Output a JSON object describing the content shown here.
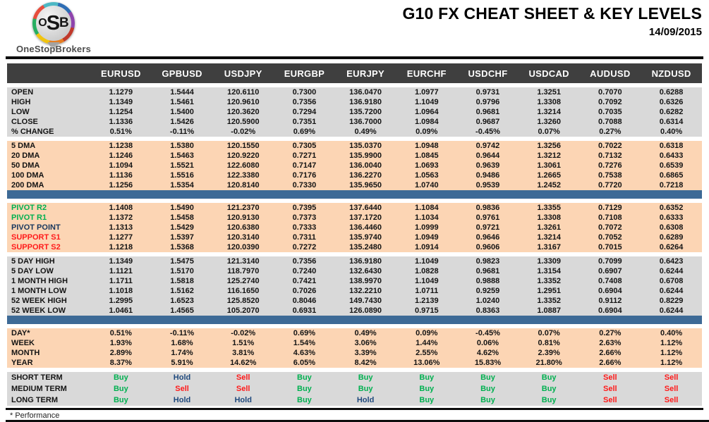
{
  "header": {
    "logo": {
      "letter_o": "O",
      "letter_s": "S",
      "letter_b": "B",
      "brand": "OneStopBrokers"
    },
    "title": "G10 FX CHEAT SHEET & KEY LEVELS",
    "date": "14/09/2015"
  },
  "footer": {
    "note": "* Performance"
  },
  "colors": {
    "header_bg": "#3f3f3f",
    "gray_section": "#d9d9d9",
    "peach_section": "#fcd5b4",
    "divider_blue": "#3d6a96",
    "buy_green": "#00b050",
    "sell_red": "#ff1a1a",
    "hold_navy": "#1f497d",
    "pivot_navy": "#17375e"
  },
  "table": {
    "columns": [
      "EURUSD",
      "GPBUSD",
      "USDJPY",
      "EURGBP",
      "EURJPY",
      "EURCHF",
      "USDCHF",
      "USDCAD",
      "AUDUSD",
      "NZDUSD"
    ],
    "sections": [
      {
        "name": "ohlc",
        "bg": "gray",
        "rows": [
          {
            "label": "OPEN",
            "values": [
              "1.1279",
              "1.5444",
              "120.6110",
              "0.7300",
              "136.0470",
              "1.0977",
              "0.9731",
              "1.3251",
              "0.7070",
              "0.6288"
            ]
          },
          {
            "label": "HIGH",
            "values": [
              "1.1349",
              "1.5461",
              "120.9610",
              "0.7356",
              "136.9180",
              "1.1049",
              "0.9796",
              "1.3308",
              "0.7092",
              "0.6326"
            ]
          },
          {
            "label": "LOW",
            "values": [
              "1.1254",
              "1.5400",
              "120.3620",
              "0.7294",
              "135.7200",
              "1.0964",
              "0.9681",
              "1.3214",
              "0.7035",
              "0.6282"
            ]
          },
          {
            "label": "CLOSE",
            "values": [
              "1.1336",
              "1.5426",
              "120.5900",
              "0.7351",
              "136.7000",
              "1.0984",
              "0.9687",
              "1.3260",
              "0.7088",
              "0.6314"
            ]
          },
          {
            "label": "% CHANGE",
            "values": [
              "0.51%",
              "-0.11%",
              "-0.02%",
              "0.69%",
              "0.49%",
              "0.09%",
              "-0.45%",
              "0.07%",
              "0.27%",
              "0.40%"
            ]
          }
        ]
      },
      {
        "name": "moving-averages",
        "bg": "peach",
        "divider_after": true,
        "rows": [
          {
            "label": "5 DMA",
            "values": [
              "1.1238",
              "1.5380",
              "120.1550",
              "0.7305",
              "135.0370",
              "1.0948",
              "0.9742",
              "1.3256",
              "0.7022",
              "0.6318"
            ]
          },
          {
            "label": "20 DMA",
            "values": [
              "1.1246",
              "1.5463",
              "120.9220",
              "0.7271",
              "135.9900",
              "1.0845",
              "0.9644",
              "1.3212",
              "0.7132",
              "0.6433"
            ]
          },
          {
            "label": "50 DMA",
            "values": [
              "1.1094",
              "1.5521",
              "122.6080",
              "0.7147",
              "136.0040",
              "1.0693",
              "0.9639",
              "1.3061",
              "0.7276",
              "0.6539"
            ]
          },
          {
            "label": "100 DMA",
            "values": [
              "1.1136",
              "1.5516",
              "122.3380",
              "0.7176",
              "136.2270",
              "1.0563",
              "0.9486",
              "1.2665",
              "0.7538",
              "0.6865"
            ]
          },
          {
            "label": "200 DMA",
            "values": [
              "1.1256",
              "1.5354",
              "120.8140",
              "0.7330",
              "135.9650",
              "1.0740",
              "0.9539",
              "1.2452",
              "0.7720",
              "0.7218"
            ]
          }
        ]
      },
      {
        "name": "pivots",
        "bg": "peach",
        "rows": [
          {
            "label": "PIVOT R2",
            "label_color": "green",
            "values": [
              "1.1408",
              "1.5490",
              "121.2370",
              "0.7395",
              "137.6440",
              "1.1084",
              "0.9836",
              "1.3355",
              "0.7129",
              "0.6352"
            ]
          },
          {
            "label": "PIVOT R1",
            "label_color": "green",
            "values": [
              "1.1372",
              "1.5458",
              "120.9130",
              "0.7373",
              "137.1720",
              "1.1034",
              "0.9761",
              "1.3308",
              "0.7108",
              "0.6333"
            ]
          },
          {
            "label": "PIVOT POINT",
            "label_color": "navy",
            "values": [
              "1.1313",
              "1.5429",
              "120.6380",
              "0.7333",
              "136.4460",
              "1.0999",
              "0.9721",
              "1.3261",
              "0.7072",
              "0.6308"
            ]
          },
          {
            "label": "SUPPORT S1",
            "label_color": "red",
            "values": [
              "1.1277",
              "1.5397",
              "120.3140",
              "0.7311",
              "135.9740",
              "1.0949",
              "0.9646",
              "1.3214",
              "0.7052",
              "0.6289"
            ]
          },
          {
            "label": "SUPPORT S2",
            "label_color": "red",
            "values": [
              "1.1218",
              "1.5368",
              "120.0390",
              "0.7272",
              "135.2480",
              "1.0914",
              "0.9606",
              "1.3167",
              "0.7015",
              "0.6264"
            ]
          }
        ]
      },
      {
        "name": "ranges",
        "bg": "gray",
        "divider_after": true,
        "rows": [
          {
            "label": "5 DAY HIGH",
            "values": [
              "1.1349",
              "1.5475",
              "121.3140",
              "0.7356",
              "136.9180",
              "1.1049",
              "0.9823",
              "1.3309",
              "0.7099",
              "0.6423"
            ]
          },
          {
            "label": "5 DAY LOW",
            "values": [
              "1.1121",
              "1.5170",
              "118.7970",
              "0.7240",
              "132.6430",
              "1.0828",
              "0.9681",
              "1.3154",
              "0.6907",
              "0.6244"
            ]
          },
          {
            "label": "1 MONTH HIGH",
            "values": [
              "1.1711",
              "1.5818",
              "125.2740",
              "0.7421",
              "138.9970",
              "1.1049",
              "0.9888",
              "1.3352",
              "0.7408",
              "0.6708"
            ]
          },
          {
            "label": "1 MONTH LOW",
            "values": [
              "1.1018",
              "1.5162",
              "116.1650",
              "0.7026",
              "132.2210",
              "1.0711",
              "0.9259",
              "1.2951",
              "0.6904",
              "0.6244"
            ]
          },
          {
            "label": "52 WEEK HIGH",
            "values": [
              "1.2995",
              "1.6523",
              "125.8520",
              "0.8046",
              "149.7430",
              "1.2139",
              "1.0240",
              "1.3352",
              "0.9112",
              "0.8229"
            ]
          },
          {
            "label": "52 WEEK LOW",
            "values": [
              "1.0461",
              "1.4565",
              "105.2070",
              "0.6931",
              "126.0890",
              "0.9715",
              "0.8363",
              "1.0887",
              "0.6904",
              "0.6244"
            ]
          }
        ]
      },
      {
        "name": "performance",
        "bg": "peach",
        "rows": [
          {
            "label": "DAY*",
            "values": [
              "0.51%",
              "-0.11%",
              "-0.02%",
              "0.69%",
              "0.49%",
              "0.09%",
              "-0.45%",
              "0.07%",
              "0.27%",
              "0.40%"
            ]
          },
          {
            "label": "WEEK",
            "values": [
              "1.93%",
              "1.68%",
              "1.51%",
              "1.54%",
              "3.06%",
              "1.44%",
              "0.06%",
              "0.81%",
              "2.63%",
              "1.12%"
            ]
          },
          {
            "label": "MONTH",
            "values": [
              "2.89%",
              "1.74%",
              "3.81%",
              "4.63%",
              "3.39%",
              "2.55%",
              "4.62%",
              "2.39%",
              "2.66%",
              "1.12%"
            ]
          },
          {
            "label": "YEAR",
            "values": [
              "8.37%",
              "5.91%",
              "14.62%",
              "6.05%",
              "8.42%",
              "13.06%",
              "15.83%",
              "21.80%",
              "2.66%",
              "1.12%"
            ]
          }
        ]
      },
      {
        "name": "signals",
        "bg": "gray",
        "signal": true,
        "rows": [
          {
            "label": "SHORT TERM",
            "values": [
              "Buy",
              "Hold",
              "Sell",
              "Buy",
              "Buy",
              "Buy",
              "Buy",
              "Buy",
              "Sell",
              "Sell"
            ]
          },
          {
            "label": "MEDIUM TERM",
            "values": [
              "Buy",
              "Sell",
              "Sell",
              "Buy",
              "Buy",
              "Buy",
              "Buy",
              "Buy",
              "Sell",
              "Sell"
            ]
          },
          {
            "label": "LONG TERM",
            "values": [
              "Buy",
              "Hold",
              "Hold",
              "Buy",
              "Hold",
              "Buy",
              "Buy",
              "Buy",
              "Sell",
              "Sell"
            ]
          }
        ]
      }
    ]
  }
}
